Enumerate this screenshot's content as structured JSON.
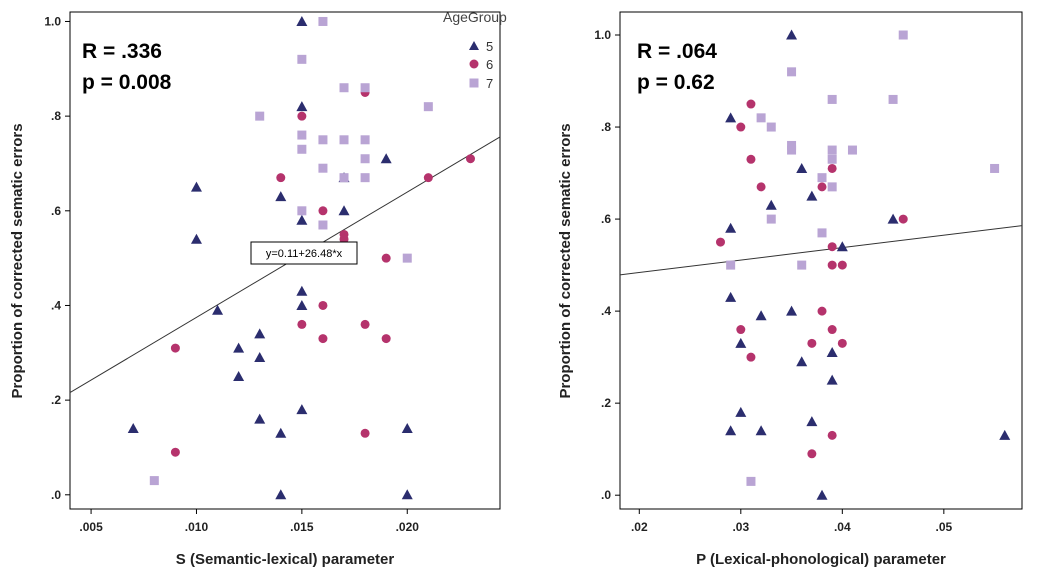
{
  "chart_data": [
    {
      "type": "scatter",
      "xlabel": "S (Semantic-lexical) parameter",
      "ylabel": "Proportion of corrected sematic errors",
      "xlim": [
        0.004,
        0.0244
      ],
      "ylim": [
        -0.03,
        1.02
      ],
      "xticks": [
        0.005,
        0.01,
        0.015,
        0.02
      ],
      "xtick_labels": [
        ".005",
        ".010",
        ".015",
        ".020"
      ],
      "yticks": [
        0.0,
        0.2,
        0.4,
        0.6,
        0.8,
        1.0
      ],
      "ytick_labels": [
        ".0",
        ".2",
        ".4",
        ".6",
        ".8",
        "1.0"
      ],
      "stat_r": "R = .336",
      "stat_p": "p = 0.008",
      "fit_equation": "y=0.11+26.48*x",
      "fit_line": {
        "intercept": 0.11,
        "slope": 26.48
      },
      "grid": false,
      "legend_position": "top-right",
      "legend_title": "AgeGroup",
      "series": [
        {
          "name": "5",
          "marker": "triangle",
          "color": "#2b2d6e",
          "points": [
            [
              0.007,
              0.14
            ],
            [
              0.01,
              0.65
            ],
            [
              0.01,
              0.54
            ],
            [
              0.011,
              0.39
            ],
            [
              0.012,
              0.31
            ],
            [
              0.012,
              0.25
            ],
            [
              0.013,
              0.34
            ],
            [
              0.013,
              0.29
            ],
            [
              0.013,
              0.16
            ],
            [
              0.014,
              0.63
            ],
            [
              0.014,
              0.13
            ],
            [
              0.014,
              0.0
            ],
            [
              0.015,
              1.0
            ],
            [
              0.015,
              0.82
            ],
            [
              0.015,
              0.58
            ],
            [
              0.015,
              0.43
            ],
            [
              0.015,
              0.4
            ],
            [
              0.015,
              0.18
            ],
            [
              0.017,
              0.67
            ],
            [
              0.017,
              0.6
            ],
            [
              0.019,
              0.71
            ],
            [
              0.02,
              0.14
            ],
            [
              0.02,
              0.0
            ]
          ]
        },
        {
          "name": "6",
          "marker": "circle",
          "color": "#b5336c",
          "points": [
            [
              0.009,
              0.31
            ],
            [
              0.009,
              0.09
            ],
            [
              0.014,
              0.67
            ],
            [
              0.015,
              0.8
            ],
            [
              0.015,
              0.36
            ],
            [
              0.016,
              0.6
            ],
            [
              0.016,
              0.4
            ],
            [
              0.016,
              0.33
            ],
            [
              0.017,
              0.55
            ],
            [
              0.017,
              0.54
            ],
            [
              0.018,
              0.85
            ],
            [
              0.018,
              0.36
            ],
            [
              0.018,
              0.13
            ],
            [
              0.019,
              0.5
            ],
            [
              0.019,
              0.33
            ],
            [
              0.021,
              0.67
            ],
            [
              0.023,
              0.71
            ]
          ]
        },
        {
          "name": "7",
          "marker": "square",
          "color": "#b9a4d4",
          "points": [
            [
              0.008,
              0.03
            ],
            [
              0.013,
              0.8
            ],
            [
              0.015,
              0.92
            ],
            [
              0.015,
              0.76
            ],
            [
              0.015,
              0.73
            ],
            [
              0.015,
              0.6
            ],
            [
              0.016,
              1.0
            ],
            [
              0.016,
              0.75
            ],
            [
              0.016,
              0.69
            ],
            [
              0.016,
              0.57
            ],
            [
              0.017,
              0.86
            ],
            [
              0.017,
              0.75
            ],
            [
              0.017,
              0.67
            ],
            [
              0.018,
              0.86
            ],
            [
              0.018,
              0.75
            ],
            [
              0.018,
              0.71
            ],
            [
              0.018,
              0.67
            ],
            [
              0.02,
              0.5
            ],
            [
              0.021,
              0.82
            ]
          ]
        }
      ]
    },
    {
      "type": "scatter",
      "xlabel": "P (Lexical-phonological) parameter",
      "ylabel": "Proportion of corrected sematic errors",
      "xlim": [
        0.0181,
        0.0577
      ],
      "ylim": [
        -0.03,
        1.05
      ],
      "xticks": [
        0.02,
        0.03,
        0.04,
        0.05
      ],
      "xtick_labels": [
        ".02",
        ".03",
        ".04",
        ".05"
      ],
      "yticks": [
        0.0,
        0.2,
        0.4,
        0.6,
        0.8,
        1.0
      ],
      "ytick_labels": [
        ".0",
        ".2",
        ".4",
        ".6",
        ".8",
        "1.0"
      ],
      "stat_r": "R = .064",
      "stat_p": "p = 0.62",
      "fit_line": {
        "intercept": 0.43,
        "slope": 2.7
      },
      "grid": false,
      "series": [
        {
          "name": "5",
          "marker": "triangle",
          "color": "#2b2d6e",
          "points": [
            [
              0.029,
              0.82
            ],
            [
              0.029,
              0.58
            ],
            [
              0.029,
              0.43
            ],
            [
              0.029,
              0.14
            ],
            [
              0.03,
              0.33
            ],
            [
              0.03,
              0.18
            ],
            [
              0.032,
              0.39
            ],
            [
              0.032,
              0.14
            ],
            [
              0.033,
              0.63
            ],
            [
              0.035,
              1.0
            ],
            [
              0.035,
              0.4
            ],
            [
              0.036,
              0.71
            ],
            [
              0.036,
              0.29
            ],
            [
              0.037,
              0.65
            ],
            [
              0.037,
              0.16
            ],
            [
              0.038,
              0.0
            ],
            [
              0.039,
              0.31
            ],
            [
              0.039,
              0.25
            ],
            [
              0.04,
              0.54
            ],
            [
              0.045,
              0.6
            ],
            [
              0.056,
              0.13
            ]
          ]
        },
        {
          "name": "6",
          "marker": "circle",
          "color": "#b5336c",
          "points": [
            [
              0.028,
              0.55
            ],
            [
              0.03,
              0.8
            ],
            [
              0.03,
              0.36
            ],
            [
              0.031,
              0.85
            ],
            [
              0.031,
              0.73
            ],
            [
              0.031,
              0.3
            ],
            [
              0.032,
              0.67
            ],
            [
              0.037,
              0.33
            ],
            [
              0.037,
              0.09
            ],
            [
              0.038,
              0.67
            ],
            [
              0.038,
              0.4
            ],
            [
              0.039,
              0.71
            ],
            [
              0.039,
              0.54
            ],
            [
              0.039,
              0.5
            ],
            [
              0.039,
              0.36
            ],
            [
              0.039,
              0.13
            ],
            [
              0.04,
              0.5
            ],
            [
              0.04,
              0.33
            ],
            [
              0.046,
              0.6
            ]
          ]
        },
        {
          "name": "7",
          "marker": "square",
          "color": "#b9a4d4",
          "points": [
            [
              0.029,
              0.5
            ],
            [
              0.031,
              0.03
            ],
            [
              0.032,
              0.82
            ],
            [
              0.033,
              0.8
            ],
            [
              0.033,
              0.6
            ],
            [
              0.035,
              0.92
            ],
            [
              0.035,
              0.76
            ],
            [
              0.035,
              0.75
            ],
            [
              0.036,
              0.5
            ],
            [
              0.038,
              0.69
            ],
            [
              0.038,
              0.57
            ],
            [
              0.039,
              0.86
            ],
            [
              0.039,
              0.75
            ],
            [
              0.039,
              0.73
            ],
            [
              0.039,
              0.67
            ],
            [
              0.041,
              0.75
            ],
            [
              0.045,
              0.86
            ],
            [
              0.046,
              1.0
            ],
            [
              0.055,
              0.71
            ]
          ]
        }
      ]
    }
  ]
}
